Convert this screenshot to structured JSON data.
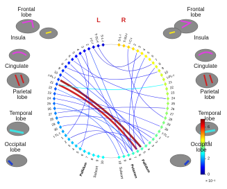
{
  "lobes": {
    "left": [
      "Frontal lobe",
      "Insula",
      "Cingulate",
      "Parietal lobe",
      "Temporal lobe",
      "Occipital lobe"
    ],
    "right": [
      "Frontal lobe",
      "Insula",
      "Cingulate",
      "Parietal lobe",
      "Temporal lobe",
      "Occipital lobe"
    ]
  },
  "hemispheres": [
    "L",
    "R"
  ],
  "left_nodes": [
    "S-L-l",
    "T-SU-l",
    "I-C-l",
    "2",
    "3",
    "4",
    "5",
    "6",
    "7",
    "8",
    "9",
    "10",
    "I-PL-l",
    "21",
    "22",
    "23",
    "24",
    "25",
    "26",
    "27",
    "28",
    "29",
    "30",
    "I-TL-l",
    "1",
    "2",
    "3",
    "4",
    "5",
    "6",
    "7",
    "8",
    "9",
    "10"
  ],
  "right_nodes": [
    "S-L-r",
    "T-SU-r",
    "I-C-r",
    "2",
    "3",
    "4",
    "5",
    "6",
    "7",
    "8",
    "9",
    "10",
    "I-PL-r",
    "21",
    "22",
    "23",
    "24",
    "25",
    "26",
    "27",
    "28",
    "29",
    "30",
    "I-TL-r",
    "1",
    "2",
    "3",
    "4",
    "5",
    "6",
    "7",
    "8",
    "9",
    "10"
  ],
  "subcortical": [
    "Subcort",
    "Pallidum",
    "Pallidum",
    "Putamen",
    "Subcort"
  ],
  "edges": [
    {
      "from": [
        0,
        12
      ],
      "to": [
        1,
        28
      ],
      "weight": 6.8
    },
    {
      "from": [
        0,
        13
      ],
      "to": [
        1,
        29
      ],
      "weight": 6.5
    },
    {
      "from": [
        0,
        13
      ],
      "to": [
        1,
        13
      ],
      "weight": 2.6
    },
    {
      "from": [
        0,
        3
      ],
      "to": [
        1,
        30
      ],
      "weight": 1.2
    },
    {
      "from": [
        0,
        5
      ],
      "to": [
        1,
        31
      ],
      "weight": 1.0
    },
    {
      "from": [
        0,
        8
      ],
      "to": [
        1,
        27
      ],
      "weight": 0.9
    },
    {
      "from": [
        0,
        10
      ],
      "to": [
        1,
        26
      ],
      "weight": 1.1
    },
    {
      "from": [
        0,
        14
      ],
      "to": [
        1,
        30
      ],
      "weight": 1.4
    },
    {
      "from": [
        0,
        16
      ],
      "to": [
        1,
        25
      ],
      "weight": 0.8
    },
    {
      "from": [
        0,
        18
      ],
      "to": [
        1,
        29
      ],
      "weight": 1.3
    },
    {
      "from": [
        0,
        20
      ],
      "to": [
        1,
        24
      ],
      "weight": 0.9
    },
    {
      "from": [
        0,
        22
      ],
      "to": [
        1,
        31
      ],
      "weight": 1.0
    },
    {
      "from": [
        0,
        25
      ],
      "to": [
        1,
        30
      ],
      "weight": 0.7
    },
    {
      "from": [
        0,
        27
      ],
      "to": [
        1,
        28
      ],
      "weight": 0.8
    },
    {
      "from": [
        0,
        6
      ],
      "to": [
        0,
        28
      ],
      "weight": 1.0
    },
    {
      "from": [
        0,
        4
      ],
      "to": [
        0,
        24
      ],
      "weight": 0.8
    },
    {
      "from": [
        1,
        4
      ],
      "to": [
        1,
        27
      ],
      "weight": 0.9
    },
    {
      "from": [
        1,
        2
      ],
      "to": [
        1,
        20
      ],
      "weight": 0.8
    },
    {
      "from": [
        1,
        6
      ],
      "to": [
        1,
        30
      ],
      "weight": 1.1
    },
    {
      "from": [
        1,
        9
      ],
      "to": [
        1,
        29
      ],
      "weight": 0.9
    },
    {
      "from": [
        0,
        2
      ],
      "to": [
        1,
        5
      ],
      "weight": 0.6
    },
    {
      "from": [
        0,
        1
      ],
      "to": [
        1,
        8
      ],
      "weight": 0.7
    },
    {
      "from": [
        0,
        9
      ],
      "to": [
        1,
        10
      ],
      "weight": 0.8
    },
    {
      "from": [
        0,
        11
      ],
      "to": [
        1,
        32
      ],
      "weight": 1.0
    },
    {
      "from": [
        0,
        15
      ],
      "to": [
        1,
        22
      ],
      "weight": 0.9
    },
    {
      "from": [
        0,
        19
      ],
      "to": [
        1,
        18
      ],
      "weight": 0.7
    },
    {
      "from": [
        0,
        7
      ],
      "to": [
        1,
        16
      ],
      "weight": 0.8
    },
    {
      "from": [
        0,
        17
      ],
      "to": [
        1,
        33
      ],
      "weight": 1.2
    }
  ],
  "colorbar": {
    "lim": [
      0,
      7
    ],
    "ticks": [
      0,
      2,
      4,
      6
    ],
    "scale_label": "× 10⁻³"
  }
}
